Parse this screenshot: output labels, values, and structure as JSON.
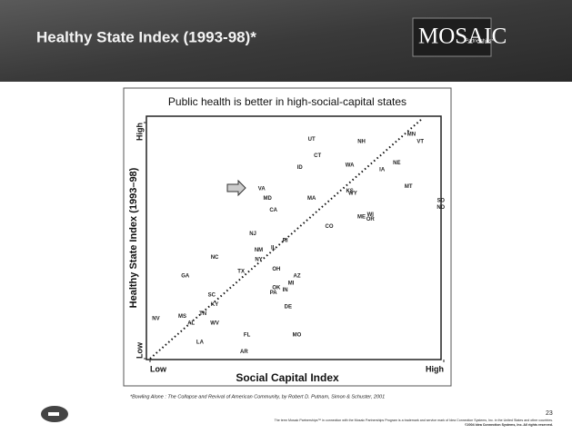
{
  "slide": {
    "title": "Healthy State Index (1993-98)*",
    "logo": "MOSAIC",
    "logo_sub": "Partnerships™",
    "footnote": "*Bowling Alone : The Collapse and Revival of American Community, by Robert D. Putnam, Simon & Schuster, 2001",
    "page_number": "23",
    "legal": [
      "The term Mosaic Partnerships™ in connection with the Mosaic Partnerships Program is a trademark and service mark of Idea Connection Systems, Inc. in the United States and other countries.",
      "©2004 Idea Connection Systems, Inc. All rights reserved."
    ]
  },
  "chart_data": {
    "type": "scatter",
    "title": "Public health is better in high-social-capital states",
    "x_label": "Social Capital Index",
    "y_label": "Healthy State Index (1993–98)",
    "xlim": [
      0,
      100
    ],
    "ylim": [
      0,
      100
    ],
    "xticks": [
      {
        "value": 0,
        "label": "Low"
      },
      {
        "value": 100,
        "label": "High"
      }
    ],
    "yticks": [
      {
        "value": 0,
        "label": "Low"
      },
      {
        "value": 100,
        "label": "High"
      }
    ],
    "labels": [
      "UT",
      "NH",
      "MN",
      "VT",
      "CT",
      "ID",
      "WA",
      "IA",
      "NE",
      "VA",
      "KS",
      "MT",
      "MD",
      "MA",
      "WY",
      "SD",
      "ND",
      "CA",
      "WI",
      "ME",
      "OR",
      "CO",
      "NJ",
      "RI",
      "IL",
      "NM",
      "NC",
      "NY",
      "GA",
      "TX",
      "OH",
      "AZ",
      "OK",
      "PA",
      "IN",
      "MI",
      "SC",
      "KY",
      "TN",
      "NV",
      "MS",
      "AL",
      "WV",
      "DE",
      "FL",
      "MO",
      "LA",
      "AR"
    ],
    "x": [
      55,
      72,
      89,
      92,
      57,
      51,
      68,
      79,
      84,
      38,
      68,
      88,
      40,
      55,
      69,
      99,
      99,
      42,
      75,
      72,
      75,
      61,
      35,
      46,
      42,
      37,
      22,
      37,
      12,
      31,
      43,
      50,
      43,
      42,
      46,
      48,
      21,
      22,
      18,
      2,
      11,
      14,
      22,
      47,
      33,
      50,
      17,
      32
    ],
    "y": [
      93,
      92,
      95,
      92,
      86,
      81,
      82,
      80,
      83,
      72,
      71,
      73,
      68,
      68,
      70,
      67,
      64,
      63,
      61,
      60,
      59,
      56,
      53,
      50,
      47,
      46,
      43,
      42,
      35,
      37,
      38,
      35,
      30,
      28,
      29,
      32,
      27,
      23,
      19,
      17,
      18,
      15,
      15,
      22,
      10,
      10,
      7,
      3
    ],
    "color": "#222222"
  }
}
